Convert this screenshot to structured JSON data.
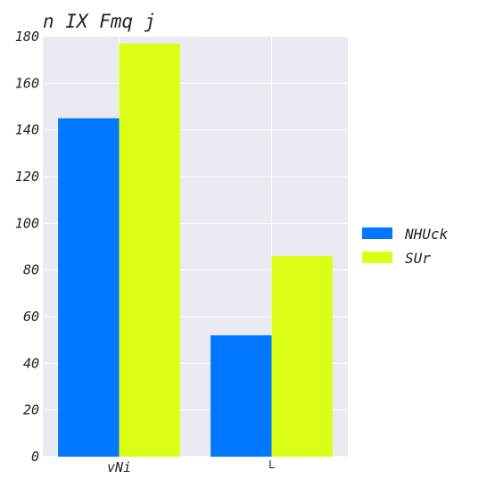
{
  "chart_data": {
    "type": "bar",
    "title": "n IX Fmq j",
    "categories": [
      "vNi",
      "L"
    ],
    "series": [
      {
        "name": "NHUck",
        "values": [
          145,
          52
        ],
        "color": "#0077ff"
      },
      {
        "name": "SUr",
        "values": [
          177,
          86
        ],
        "color": "#dcff17"
      }
    ],
    "xlabel": "",
    "ylabel": "",
    "ylim": [
      0,
      180
    ],
    "yticks": [
      0,
      20,
      40,
      60,
      80,
      100,
      120,
      140,
      160,
      180
    ],
    "grid": true,
    "legend_position": "right",
    "background": "#e9eaf2"
  }
}
